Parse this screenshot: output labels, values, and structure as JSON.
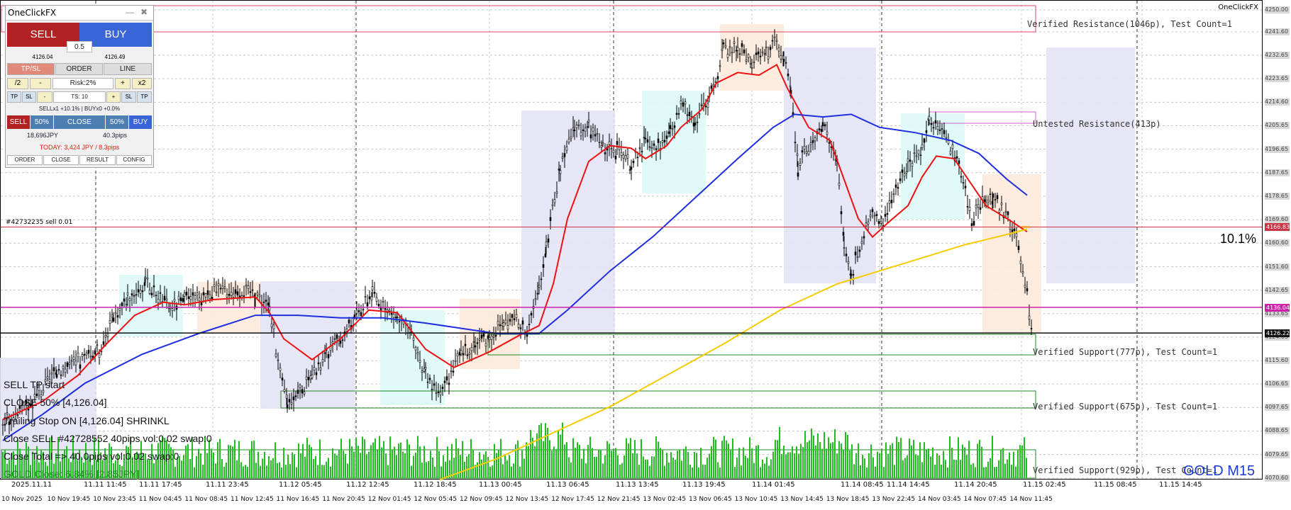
{
  "panel": {
    "title": "OneClickFX",
    "sell_label": "SELL",
    "buy_label": "BUY",
    "lot": "0.5",
    "sell_price": "4126.04",
    "buy_price": "4126.49",
    "tabs": [
      "TP/SL",
      "ORDER",
      "LINE"
    ],
    "half": "/2",
    "minus": "-",
    "risk": "Risk:2%",
    "plus": "+",
    "double": "x2",
    "tp": "TP",
    "sl": "SL",
    "ts_minus": "-",
    "ts": "TS: 10",
    "ts_plus": "+",
    "sl2": "SL",
    "tp2": "TP",
    "position_summary": "SELLx1 +10.1% | BUYx0 +0.0%",
    "close_row": [
      "SELL",
      "50%",
      "CLOSE",
      "50%",
      "BUY"
    ],
    "jpy_profit": "18,696JPY",
    "pips_profit": "40.3pips",
    "today": "TODAY: 3,424 JPY / 8.3pips",
    "bottom_tabs": [
      "ORDER",
      "CLOSE",
      "RESULT",
      "CONFIG"
    ]
  },
  "chart": {
    "brand": "OneClickFX",
    "symbol_label": "GOLD M15",
    "percent_label": "10.1%",
    "order_label": "#42732235 sell 0.01",
    "levels": [
      {
        "text": "Verified Resistance(1046p), Test Count=1"
      },
      {
        "text": "Untested Resistance(413p)"
      },
      {
        "text": "Verified Support(777p), Test Count=1"
      },
      {
        "text": "Verified Support(675p), Test Count=1"
      },
      {
        "text": "Verified Support(929p), Test Count=1"
      }
    ],
    "log_lines": [
      "SELL TP start",
      "CLOSE 50% [4,126.04]",
      "Trailing Stop ON [4,126.04] SHRINKL",
      "Close SELL #42728552 40pips vol:0.02 swap:0",
      "Close Total => 40.0pips vol:0.02 swap:0",
      "GOLD Close: 6.84% [2.85JPY]"
    ],
    "price_axis": [
      "4250.00",
      "4241.60",
      "4232.65",
      "4223.65",
      "4214.60",
      "4205.65",
      "4196.65",
      "4187.65",
      "4178.65",
      "4169.60",
      "4160.60",
      "4151.60",
      "4142.65",
      "4133.65",
      "4124.65",
      "4115.60",
      "4106.65",
      "4097.65",
      "4088.65",
      "4079.65",
      "4070.60"
    ],
    "price_tags": [
      {
        "value": "4166.83",
        "color": "#cc3344"
      },
      {
        "value": "4136.04",
        "color": "#cc22aa"
      },
      {
        "value": "4126.22",
        "color": "#111111"
      }
    ],
    "time_top": [
      "2025.11.11",
      "11.11 11:45",
      "11.11 17:45",
      "11.11 23:45",
      "11.12 05:45",
      "11.12 12:45",
      "11.12 18:45",
      "11.13 00:45",
      "11.13 06:45",
      "11.13 13:45",
      "11.13 19:45",
      "11.14 01:45",
      "11.14 08:45",
      "11.14 14:45",
      "11.14 20:45",
      "11.15 02:45",
      "11.15 08:45",
      "11.15 14:45"
    ],
    "time_bottom": [
      "10 Nov 2025",
      "10 Nov 19:45",
      "10 Nov 23:45",
      "11 Nov 04:45",
      "11 Nov 08:45",
      "11 Nov 12:45",
      "11 Nov 16:45",
      "11 Nov 20:45",
      "12 Nov 01:45",
      "12 Nov 05:45",
      "12 Nov 09:45",
      "12 Nov 13:45",
      "12 Nov 17:45",
      "12 Nov 21:45",
      "13 Nov 02:45",
      "13 Nov 06:45",
      "13 Nov 10:45",
      "13 Nov 14:45",
      "13 Nov 18:45",
      "13 Nov 22:45",
      "14 Nov 03:45",
      "14 Nov 07:45",
      "14 Nov 11:45"
    ],
    "colors": {
      "candle": "#000000",
      "ma_fast": "#ee1111",
      "ma_mid": "#1e2ee0",
      "ma_slow": "#f5cc00",
      "volume": "#22bb22",
      "resistance": "#dd2244",
      "support": "#228822",
      "box_blue": "#e3e3f6",
      "box_cyan": "#ddf8f8",
      "box_peach": "#fbeadc"
    }
  }
}
